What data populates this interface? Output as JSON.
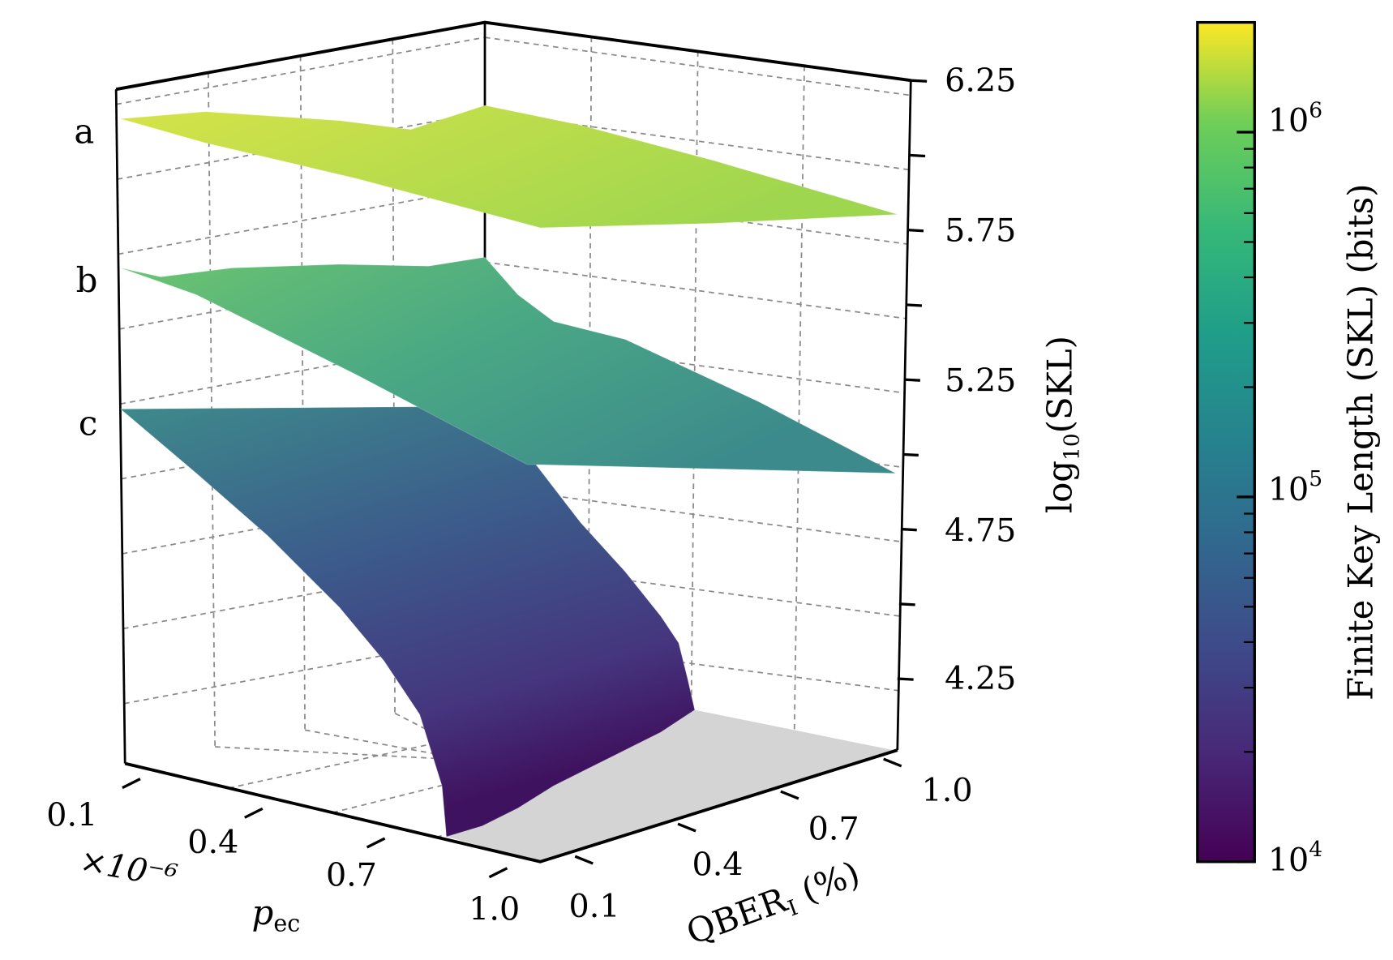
{
  "chart_data": {
    "type": "surface",
    "title": "",
    "xlabel": "p_ec",
    "xlabel_main": "p",
    "xlabel_sub": "ec",
    "x_multiplier": "×10⁻⁶",
    "x_ticks": [
      "0.1",
      "0.4",
      "0.7",
      "1.0"
    ],
    "ylabel_main": "QBER",
    "ylabel_sub": "I",
    "ylabel_unit": " (%)",
    "y_ticks": [
      "0.1",
      "0.4",
      "0.7",
      "1.0"
    ],
    "zlabel_main": "log",
    "zlabel_sub": "10",
    "zlabel_rest": "(SKL)",
    "z_ticks": [
      "6.25",
      "5.75",
      "5.25",
      "4.75",
      "4.25"
    ],
    "zlim": [
      4.1,
      6.25
    ],
    "series": [
      {
        "name": "a",
        "z_range": [
          5.9,
          6.1
        ],
        "color": "#b5dd3f"
      },
      {
        "name": "b",
        "z_range": [
          5.05,
          5.7
        ],
        "color": "#52b27f"
      },
      {
        "name": "c",
        "z_range": [
          4.0,
          5.2
        ],
        "color": "#3e5f8c"
      }
    ],
    "floor_color": "#d4d4d4",
    "colorbar": {
      "label": "Finite Key Length (SKL) (bits)",
      "scale": "log",
      "range": [
        10000,
        2000000
      ],
      "ticks": [
        {
          "base": "10",
          "exp": "6",
          "value": 1000000
        },
        {
          "base": "10",
          "exp": "5",
          "value": 100000
        },
        {
          "base": "10",
          "exp": "4",
          "value": 10000
        }
      ],
      "colormap": "viridis"
    }
  }
}
